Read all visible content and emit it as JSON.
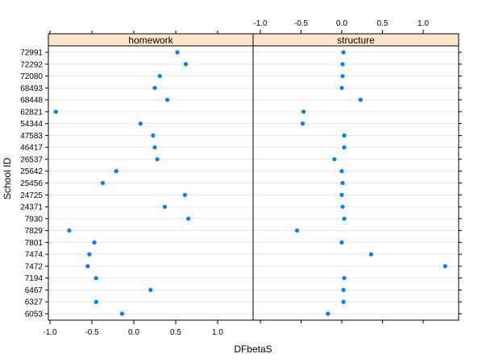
{
  "chart_data": {
    "type": "scatter",
    "xlabel": "DFbetaS",
    "ylabel": "School ID",
    "x_ticks": [
      -1.0,
      -0.5,
      0.0,
      0.5,
      1.0
    ],
    "x_tick_labels": [
      "-1.0",
      "-0.5",
      "0.0",
      "0.5",
      "1.0"
    ],
    "categories": [
      "72991",
      "72292",
      "72080",
      "68493",
      "68448",
      "62821",
      "54344",
      "47583",
      "46417",
      "26537",
      "25642",
      "25456",
      "24725",
      "24371",
      "7930",
      "7829",
      "7801",
      "7474",
      "7472",
      "7194",
      "6467",
      "6327",
      "6053"
    ],
    "point_color": "#0080ff",
    "strip_color": "#ffe5cc",
    "panels": [
      {
        "name": "homework",
        "values": [
          0.52,
          0.62,
          0.31,
          0.25,
          0.4,
          -0.93,
          0.08,
          0.23,
          0.25,
          0.28,
          -0.21,
          -0.37,
          0.61,
          0.37,
          0.65,
          -0.77,
          -0.47,
          -0.53,
          -0.55,
          -0.45,
          0.2,
          -0.45,
          -0.14
        ]
      },
      {
        "name": "structure",
        "values": [
          0.02,
          0.01,
          0.01,
          0.0,
          0.23,
          -0.47,
          -0.48,
          0.03,
          0.03,
          -0.09,
          0.0,
          0.01,
          0.0,
          0.01,
          0.03,
          -0.55,
          0.0,
          0.36,
          1.27,
          0.03,
          0.02,
          0.02,
          -0.17
        ]
      }
    ]
  }
}
